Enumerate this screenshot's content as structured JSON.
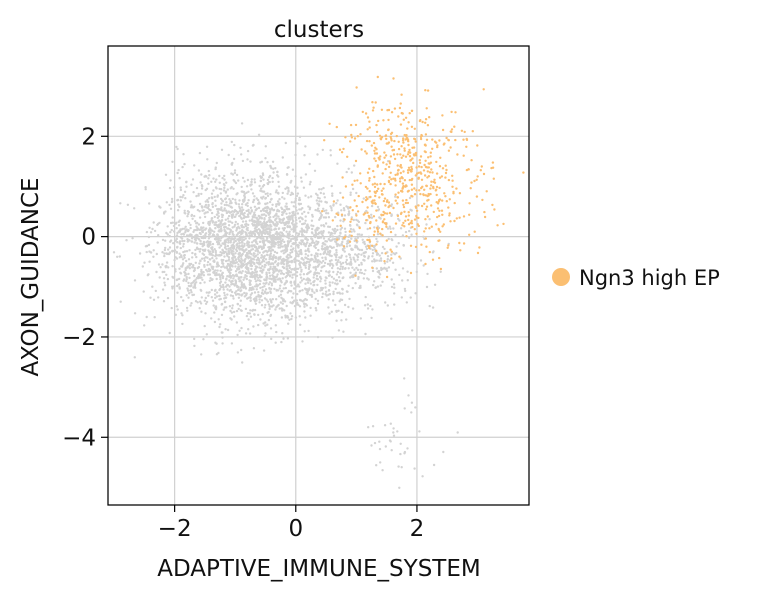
{
  "chart_data": {
    "type": "scatter",
    "title": "clusters",
    "xlabel": "ADAPTIVE_IMMUNE_SYSTEM",
    "ylabel": "AXON_GUIDANCE",
    "xlim": [
      -3.1,
      3.85
    ],
    "ylim": [
      -5.35,
      3.8
    ],
    "xticks": [
      -2,
      0,
      2
    ],
    "xtick_labels": [
      "−2",
      "0",
      "2"
    ],
    "yticks": [
      -4,
      -2,
      0,
      2
    ],
    "ytick_labels": [
      "−4",
      "−2",
      "0",
      "2"
    ],
    "grid": true,
    "legend_placement": "right",
    "series": [
      {
        "name": "Ngn3 high EP",
        "color": "#fbbf72",
        "approximate_distribution": {
          "centers": [
            [
              1.9,
              1.2
            ],
            [
              1.2,
              0.3
            ]
          ],
          "sd": [
            [
              0.55,
              0.75
            ],
            [
              0.35,
              0.4
            ]
          ],
          "count": [
            560,
            60
          ]
        }
      },
      {
        "name": "",
        "color": "#d3d3d3",
        "approximate_distribution": {
          "centers": [
            [
              -0.7,
              -0.2
            ],
            [
              0.9,
              -0.4
            ],
            [
              1.6,
              -4.1
            ]
          ],
          "sd": [
            [
              0.75,
              0.75
            ],
            [
              0.6,
              0.5
            ],
            [
              0.35,
              0.45
            ]
          ],
          "count": [
            2900,
            450,
            40
          ]
        }
      }
    ]
  }
}
